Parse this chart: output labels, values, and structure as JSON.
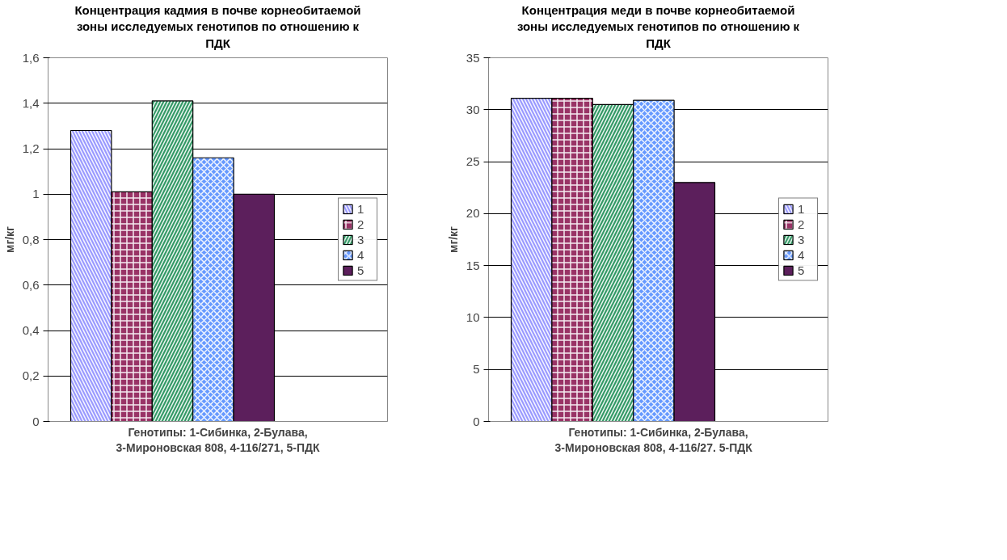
{
  "chart_data": [
    {
      "type": "bar",
      "title": "Концентрация кадмия в почве корнеобитаемой зоны исследуемых генотипов по отношению к ПДК",
      "xlabel": "Генотипы: 1-Сибинка, 2-Булава, 3-Мироновская 808, 4-116/271, 5-ПДК",
      "ylabel": "мг/кг",
      "categories": [
        null
      ],
      "series": [
        {
          "name": "1",
          "color": "#9999ff",
          "values": [
            1.28
          ]
        },
        {
          "name": "2",
          "color": "#993366",
          "values": [
            1.01
          ]
        },
        {
          "name": "3",
          "color": "#339966",
          "values": [
            1.41
          ]
        },
        {
          "name": "4",
          "color": "#6699ff",
          "values": [
            1.16
          ]
        },
        {
          "name": "5",
          "color": "#5c1f5c",
          "values": [
            1.0
          ]
        }
      ],
      "ylim": [
        0,
        1.6
      ],
      "yticks": [
        {
          "value": 0,
          "label": "0"
        },
        {
          "value": 0.2,
          "label": "0,2"
        },
        {
          "value": 0.4,
          "label": "0,4"
        },
        {
          "value": 0.6,
          "label": "0,6"
        },
        {
          "value": 0.8,
          "label": "0,8"
        },
        {
          "value": 1,
          "label": "1"
        },
        {
          "value": 1.2,
          "label": "1,2"
        },
        {
          "value": 1.4,
          "label": "1,4"
        },
        {
          "value": 1.6,
          "label": "1,6"
        }
      ],
      "grid": "y",
      "legend": "right",
      "tick_labels": "y"
    },
    {
      "type": "bar",
      "title": "Концентрация меди в почве корнеобитаемой зоны исследуемых генотипов по отношению к ПДК",
      "xlabel": "Генотипы: 1-Сибинка, 2-Булава, 3-Мироновская 808, 4-116/27.    5-ПДК",
      "ylabel": "мг/кг",
      "categories": [
        null
      ],
      "series": [
        {
          "name": "1",
          "color": "#9999ff",
          "values": [
            31.1
          ]
        },
        {
          "name": "2",
          "color": "#993366",
          "values": [
            31.1
          ]
        },
        {
          "name": "3",
          "color": "#339966",
          "values": [
            30.5
          ]
        },
        {
          "name": "4",
          "color": "#6699ff",
          "values": [
            30.9
          ]
        },
        {
          "name": "5",
          "color": "#5c1f5c",
          "values": [
            23.0
          ]
        }
      ],
      "ylim": [
        0,
        35
      ],
      "yticks": [
        0,
        5,
        10,
        15,
        20,
        25,
        30,
        35
      ],
      "grid": "y",
      "legend": "right",
      "tick_labels": "y"
    }
  ]
}
